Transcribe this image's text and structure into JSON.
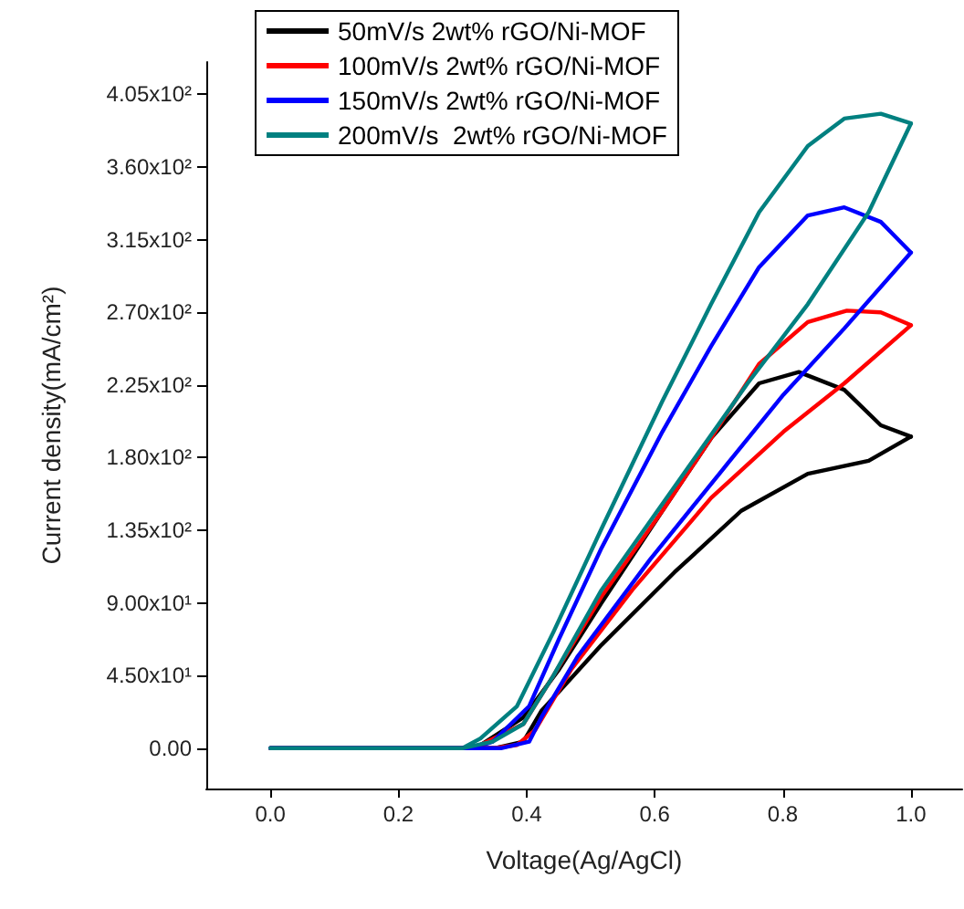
{
  "chart_data": {
    "type": "line",
    "xlabel": "Voltage(Ag/AgCl)",
    "ylabel": "Current density(mA/cm²)",
    "xlim": [
      -0.1,
      1.08
    ],
    "ylim": [
      -25,
      425
    ],
    "xticks": [
      {
        "value": 0,
        "label": "0.0"
      },
      {
        "value": 0.2,
        "label": "0.2"
      },
      {
        "value": 0.4,
        "label": "0.4"
      },
      {
        "value": 0.6,
        "label": "0.6"
      },
      {
        "value": 0.8,
        "label": "0.8"
      },
      {
        "value": 1,
        "label": "1.0"
      }
    ],
    "yticks": [
      {
        "value": 0,
        "label": "0.00"
      },
      {
        "value": 45,
        "label": "4.50x10¹"
      },
      {
        "value": 90,
        "label": "9.00x10¹"
      },
      {
        "value": 135,
        "label": "1.35x10²"
      },
      {
        "value": 180,
        "label": "1.80x10²"
      },
      {
        "value": 225,
        "label": "2.25x10²"
      },
      {
        "value": 270,
        "label": "2.70x10²"
      },
      {
        "value": 315,
        "label": "3.15x10²"
      },
      {
        "value": 360,
        "label": "3.60x10²"
      },
      {
        "value": 405,
        "label": "4.05x10²"
      }
    ],
    "grid": false,
    "legend": "top",
    "marker": "none",
    "line_style": "solid",
    "series": [
      {
        "name": "50mV/s 2wt% rGO/Ni-MOF",
        "color": "#000000",
        "x": [
          0,
          0.2,
          0.35,
          0.395,
          0.423,
          0.517,
          0.631,
          0.735,
          0.839,
          0.934,
          1.0
        ],
        "values": [
          0,
          0,
          0,
          4,
          23,
          64,
          109,
          147,
          170,
          178,
          193
        ]
      },
      {
        "name": "100mV/s 2wt% rGO/Ni-MOF",
        "color": "#ff0000",
        "x": [
          0,
          0.2,
          0.35,
          0.385,
          0.413,
          0.47,
          0.565,
          0.688,
          0.801,
          0.896,
          1.0
        ],
        "values": [
          0,
          0,
          0,
          2,
          11,
          49,
          98,
          155,
          196,
          226,
          262
        ]
      },
      {
        "name": "150mV/s 2wt% rGO/Ni-MOF",
        "color": "#0000ff",
        "x": [
          0,
          0.2,
          0.36,
          0.404,
          0.423,
          0.48,
          0.593,
          0.707,
          0.801,
          0.896,
          1.0
        ],
        "values": [
          0,
          0,
          0,
          4,
          19,
          57,
          117,
          173,
          219,
          260,
          307
        ]
      },
      {
        "name": "200mV/s  2wt% rGO/Ni-MOF",
        "color": "#008080",
        "x": [
          0,
          0.2,
          0.3,
          0.347,
          0.395,
          0.442,
          0.517,
          0.631,
          0.745,
          0.839,
          0.934,
          1.0
        ],
        "values": [
          0,
          0,
          0,
          4,
          15,
          45,
          98,
          162,
          226,
          275,
          332,
          387
        ]
      },
      {
        "color": "#000000",
        "x": [
          1.0,
          0.953,
          0.896,
          0.825,
          0.763,
          0.688,
          0.612,
          0.517,
          0.451,
          0.395,
          0.328
        ],
        "values": [
          193,
          200,
          222,
          233,
          226,
          192,
          147,
          90,
          49,
          19,
          2
        ]
      },
      {
        "color": "#ff0000",
        "x": [
          1.0,
          0.953,
          0.9,
          0.839,
          0.763,
          0.688,
          0.612,
          0.517,
          0.442,
          0.395,
          0.328
        ],
        "values": [
          262,
          270,
          271,
          264,
          238,
          192,
          147,
          94,
          45,
          15,
          2
        ]
      },
      {
        "color": "#0000ff",
        "x": [
          1.0,
          0.953,
          0.896,
          0.839,
          0.763,
          0.688,
          0.612,
          0.517,
          0.451,
          0.404,
          0.347,
          0.318
        ],
        "values": [
          307,
          326,
          335,
          330,
          298,
          249,
          196,
          124,
          68,
          26,
          4,
          0
        ]
      },
      {
        "color": "#008080",
        "x": [
          1.0,
          0.953,
          0.896,
          0.839,
          0.763,
          0.688,
          0.612,
          0.517,
          0.442,
          0.385,
          0.328,
          0.3
        ],
        "values": [
          387,
          393,
          390,
          373,
          332,
          275,
          215,
          136,
          72,
          26,
          6,
          0
        ]
      }
    ]
  }
}
